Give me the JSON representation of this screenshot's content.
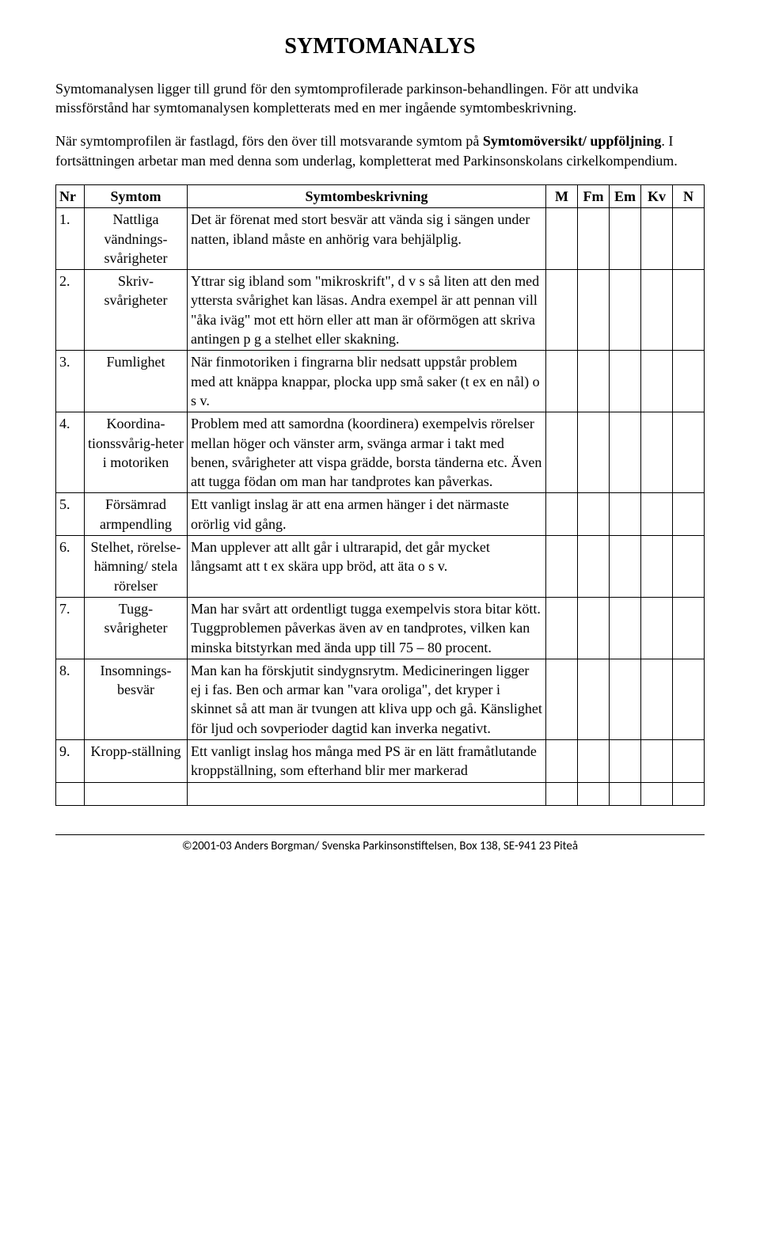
{
  "title": "SYMTOMANALYS",
  "intro1_a": "Symtomanalysen ligger till grund för den symtomprofilerade parkinson-behandlingen. För att undvika missförstånd har symtomanalysen kompletterats med en mer ingående symtombeskrivning.",
  "intro2_a": "När symtomprofilen är fastlagd, förs den över till motsvarande symtom på ",
  "intro2_b": "Symtomöversikt/ uppföljning",
  "intro2_c": ". I fortsättningen arbetar man med denna som underlag, kompletterat med Parkinsonskolans cirkelkompendium.",
  "headers": {
    "nr": "Nr",
    "symtom": "Symtom",
    "desc": "Symtombeskrivning",
    "m": "M",
    "fm": "Fm",
    "em": "Em",
    "kv": "Kv",
    "n": "N"
  },
  "rows": [
    {
      "nr": "1.",
      "symtom": "Nattliga vändnings-svårigheter",
      "desc": "Det är förenat med stort besvär att vända sig i sängen under natten, ibland måste en anhörig vara behjälplig."
    },
    {
      "nr": "2.",
      "symtom": "Skriv-svårigheter",
      "desc": "Yttrar sig ibland som \"mikroskrift\", d v s så liten att den med yttersta svårighet kan läsas. Andra exempel är att pennan vill \"åka iväg\" mot ett hörn eller att man är oförmögen att skriva antingen p g a stelhet eller skakning."
    },
    {
      "nr": "3.",
      "symtom": "Fumlighet",
      "desc": "När finmotoriken i fingrarna blir nedsatt uppstår problem med att knäppa knappar, plocka upp små saker (t ex en nål) o s v."
    },
    {
      "nr": "4.",
      "symtom": "Koordina-tionssvårig-heter i motoriken",
      "desc": "Problem med att samordna (koordinera) exempelvis rörelser mellan höger och vänster arm, svänga armar i takt med benen, svårigheter att vispa grädde, borsta tänderna etc. Även att tugga födan om man har tandprotes kan påverkas."
    },
    {
      "nr": "5.",
      "symtom": "Försämrad armpendling",
      "desc": "Ett vanligt inslag är att ena armen hänger i det närmaste orörlig vid gång."
    },
    {
      "nr": "6.",
      "symtom": "Stelhet, rörelse-hämning/ stela rörelser",
      "desc": "Man upplever att allt går i ultrarapid, det går mycket långsamt att t ex skära upp bröd, att äta o s v."
    },
    {
      "nr": "7.",
      "symtom": "Tugg-svårigheter",
      "desc": "Man har svårt att ordentligt tugga exempelvis stora bitar kött. Tuggproblemen påverkas även av en tandprotes, vilken kan minska bitstyrkan med ända upp till 75 – 80 procent."
    },
    {
      "nr": "8.",
      "symtom": "Insomnings-besvär",
      "desc": "Man kan ha förskjutit sindygnsrytm. Medicineringen ligger ej i fas. Ben och armar kan \"vara oroliga\", det kryper i skinnet så att man är tvungen att kliva upp och gå. Känslighet för ljud och sovperioder dagtid kan inverka negativt."
    },
    {
      "nr": "9.",
      "symtom": "Kropp-ställning",
      "desc": "Ett vanligt inslag hos många med PS är en lätt framåtlutande kroppställning, som efterhand blir mer markerad"
    }
  ],
  "footer": "©2001-03 Anders Borgman/ Svenska Parkinsonstiftelsen, Box 138, SE-941 23 Piteå"
}
